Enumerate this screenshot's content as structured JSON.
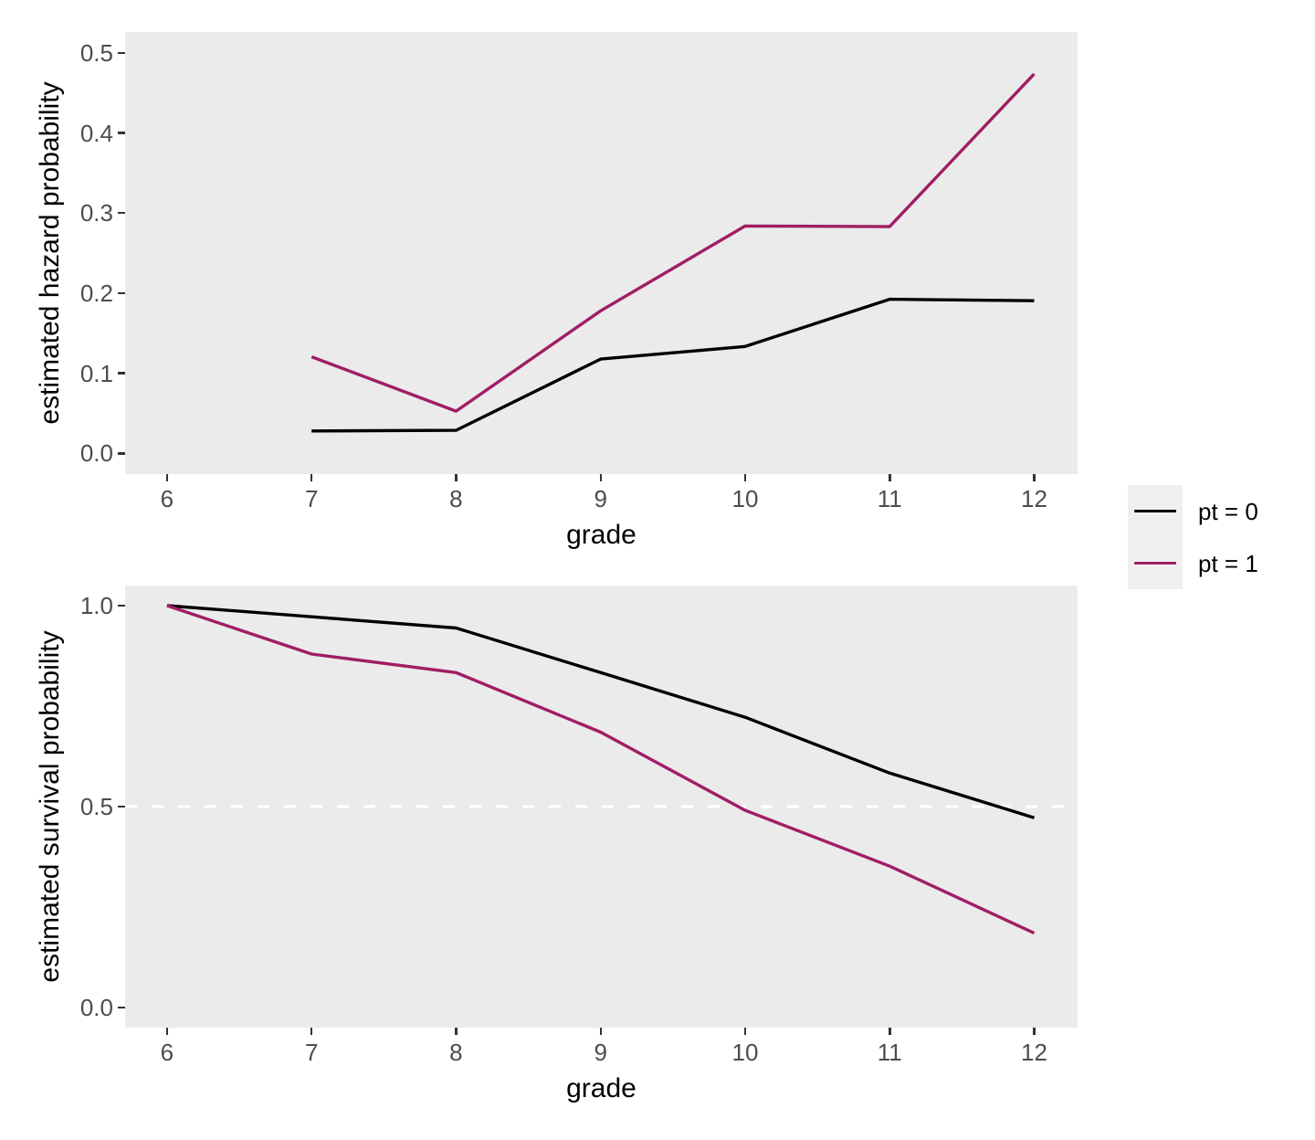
{
  "figure": {
    "background": "#FFFFFF",
    "panel_background": "#EBEBEB",
    "tick_label_color": "#4D4D4D",
    "tick_mark_color": "#333333",
    "axis_title_color": "#000000"
  },
  "legend": {
    "key_background": "#F0F0F0",
    "items": [
      {
        "label": "pt = 0",
        "color": "#000000"
      },
      {
        "label": "pt = 1",
        "color": "#A01E64"
      }
    ]
  },
  "chart_data": [
    {
      "type": "line",
      "title": "",
      "xlabel": "grade",
      "ylabel": "estimated hazard probability",
      "x_ticks": [
        6,
        7,
        8,
        9,
        10,
        11,
        12
      ],
      "x_tick_labels": [
        "6",
        "7",
        "8",
        "9",
        "10",
        "11",
        "12"
      ],
      "y_ticks": [
        0.0,
        0.1,
        0.2,
        0.3,
        0.4,
        0.5
      ],
      "y_tick_labels": [
        "0.0",
        "0.1",
        "0.2",
        "0.3",
        "0.4",
        "0.5"
      ],
      "xlim": [
        5.71,
        12.3
      ],
      "ylim": [
        -0.026,
        0.526
      ],
      "grid": false,
      "legend_position": "right",
      "series": [
        {
          "name": "pt = 0",
          "color": "#000000",
          "x": [
            7,
            8,
            9,
            10,
            11,
            12
          ],
          "y": [
            0.0278,
            0.0286,
            0.1176,
            0.1333,
            0.1923,
            0.1905
          ]
        },
        {
          "name": "pt = 1",
          "color": "#A01E64",
          "x": [
            7,
            8,
            9,
            10,
            11,
            12
          ],
          "y": [
            0.1204,
            0.0526,
            0.1778,
            0.2838,
            0.283,
            0.4737
          ]
        }
      ]
    },
    {
      "type": "line",
      "title": "",
      "xlabel": "grade",
      "ylabel": "estimated survival probability",
      "x_ticks": [
        6,
        7,
        8,
        9,
        10,
        11,
        12
      ],
      "x_tick_labels": [
        "6",
        "7",
        "8",
        "9",
        "10",
        "11",
        "12"
      ],
      "y_ticks": [
        0.0,
        0.5,
        1.0
      ],
      "y_tick_labels": [
        "0.0",
        "0.5",
        "1.0"
      ],
      "xlim": [
        5.71,
        12.3
      ],
      "ylim": [
        -0.05,
        1.05
      ],
      "grid": false,
      "legend_position": "right",
      "reference_line": {
        "y": 0.5,
        "style": "dashed",
        "color": "#FFFFFF"
      },
      "series": [
        {
          "name": "pt = 0",
          "color": "#000000",
          "x": [
            6,
            7,
            8,
            9,
            10,
            11,
            12
          ],
          "y": [
            1.0,
            0.9722,
            0.9444,
            0.8333,
            0.7222,
            0.5833,
            0.4722
          ]
        },
        {
          "name": "pt = 1",
          "color": "#A01E64",
          "x": [
            6,
            7,
            8,
            9,
            10,
            11,
            12
          ],
          "y": [
            1.0,
            0.8796,
            0.8333,
            0.6852,
            0.4907,
            0.3519,
            0.1852
          ]
        }
      ]
    }
  ]
}
